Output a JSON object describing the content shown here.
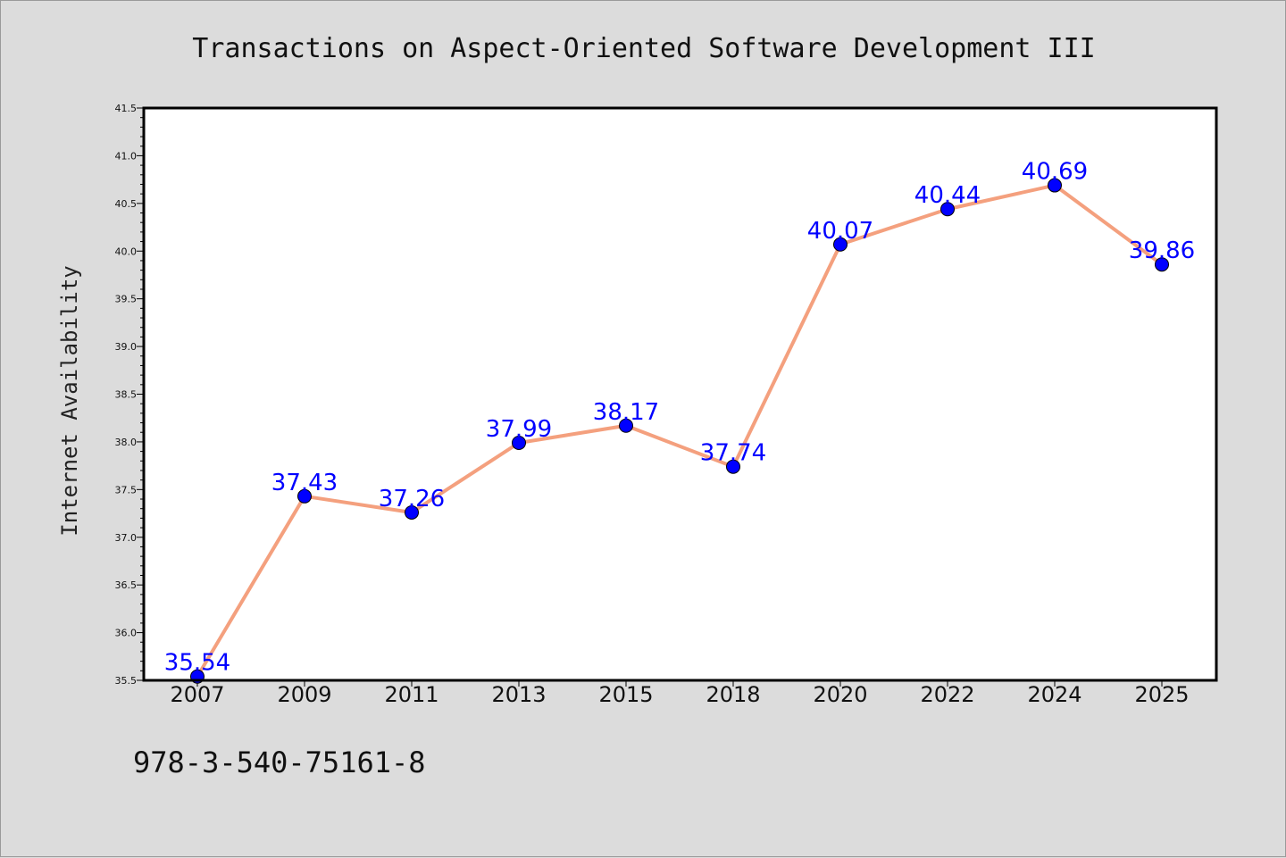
{
  "chart_data": {
    "type": "line",
    "title": "Transactions on Aspect-Oriented Software Development III",
    "xlabel": "",
    "ylabel": "Internet Availability",
    "categories": [
      "2007",
      "2009",
      "2011",
      "2013",
      "2015",
      "2018",
      "2020",
      "2022",
      "2024",
      "2025"
    ],
    "series": [
      {
        "values": [
          35.54,
          37.43,
          37.26,
          37.99,
          38.17,
          37.74,
          40.07,
          40.44,
          40.69,
          39.86
        ]
      }
    ],
    "data_labels": [
      "35.54",
      "37.43",
      "37.26",
      "37.99",
      "38.17",
      "37.74",
      "40.07",
      "40.44",
      "40.69",
      "39.86"
    ],
    "ylim": [
      35.5,
      41.5
    ],
    "yticks": [
      "35.5",
      "36.0",
      "36.5",
      "37.0",
      "37.5",
      "38.0",
      "38.5",
      "39.0",
      "39.5",
      "40.0",
      "40.5",
      "41.0",
      "41.5"
    ],
    "grid": false,
    "line_color": "#f4a07e",
    "marker_color": "#0000ff",
    "label_color": "#0000ff",
    "background_color": "#dcdcdc",
    "plot_background_color": "#ffffff"
  },
  "footer": {
    "isbn": "978-3-540-75161-8"
  }
}
